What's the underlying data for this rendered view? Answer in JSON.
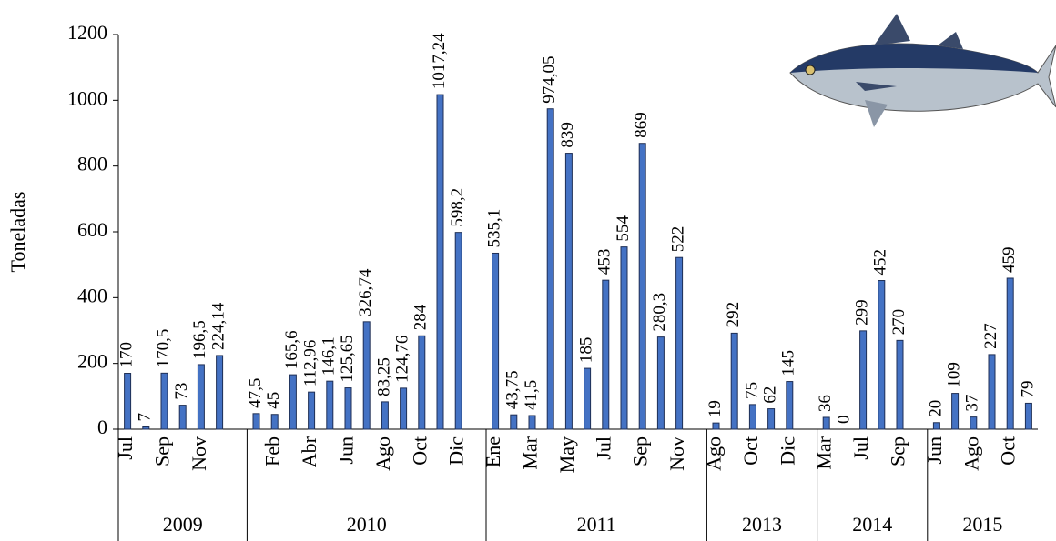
{
  "chart_data": {
    "type": "bar",
    "y_label": "Toneladas",
    "ylim": [
      0,
      1200
    ],
    "yticks": [
      0,
      200,
      400,
      600,
      800,
      1000,
      1200
    ],
    "color": "#4472c4",
    "groups": [
      {
        "label": "2009",
        "categories": [
          "Jul",
          null,
          "Sep",
          null,
          "Nov",
          null
        ],
        "values": [
          170,
          7,
          170.5,
          73,
          196.5,
          224.14
        ],
        "value_labels": [
          "170",
          "7",
          "170,5",
          "73",
          "196,5",
          "224,14"
        ]
      },
      {
        "label": "2010",
        "categories": [
          null,
          "Feb",
          null,
          "Abr",
          null,
          "Jun",
          null,
          "Ago",
          null,
          "Oct",
          null,
          "Dic"
        ],
        "values": [
          47.5,
          45,
          165.6,
          112.96,
          146.1,
          125.65,
          326.74,
          83.25,
          124.76,
          284,
          1017.24,
          598.2
        ],
        "value_labels": [
          "47,5",
          "45",
          "165,6",
          "112,96",
          "146,1",
          "125,65",
          "326,74",
          "83,25",
          "124,76",
          "284",
          "1017,24",
          "598,2"
        ]
      },
      {
        "label": "2011",
        "categories": [
          "Ene",
          null,
          "Mar",
          null,
          "May",
          null,
          "Jul",
          null,
          "Sep",
          null,
          "Nov"
        ],
        "values": [
          535.1,
          43.75,
          41.5,
          974.05,
          839,
          185,
          453,
          554,
          869,
          280.3,
          522
        ],
        "value_labels": [
          "535,1",
          "43,75",
          "41,5",
          "974,05",
          "839",
          "185",
          "453",
          "554",
          "869",
          "280,3",
          "522"
        ]
      },
      {
        "label": "2013",
        "categories": [
          "Ago",
          null,
          "Oct",
          null,
          "Dic"
        ],
        "values": [
          19,
          292,
          75,
          62,
          145
        ],
        "value_labels": [
          "19",
          "292",
          "75",
          "62",
          "145"
        ]
      },
      {
        "label": "2014",
        "categories": [
          "Mar",
          null,
          "Jul",
          null,
          "Sep"
        ],
        "values": [
          36,
          0,
          299,
          452,
          270
        ],
        "value_labels": [
          "36",
          "0",
          "299",
          "452",
          "270"
        ]
      },
      {
        "label": "2015",
        "categories": [
          "Jun",
          null,
          "Ago",
          null,
          "Oct",
          null
        ],
        "values": [
          20,
          109,
          37,
          227,
          459,
          79
        ],
        "value_labels": [
          "20",
          "109",
          "37",
          "227",
          "459",
          "79"
        ]
      }
    ]
  }
}
